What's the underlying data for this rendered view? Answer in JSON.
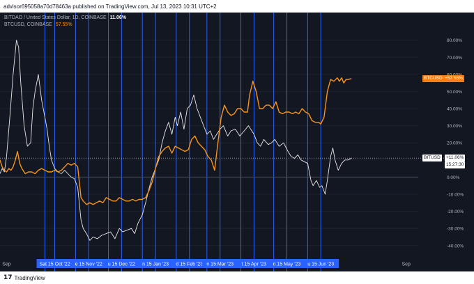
{
  "header": {
    "publish_info": "advisor695058a70d78463a published on TradingView.com, Jul 13, 2023 10:31 UTC+2"
  },
  "legend": {
    "series1_label": "BITDAO / United States Dollar, 1D, COINBASE",
    "series1_value": "11.06%",
    "series2_label": "BTCUSD, COINBASE",
    "series2_value": "57.55%"
  },
  "price_tags": {
    "btc_label": "BTCUSD",
    "btc_value": "+57.55%",
    "bit_label": "BITUSD",
    "bit_value": "+11.06%",
    "bit_countdown": "15:27:30"
  },
  "footer": {
    "logo": "17",
    "brand": "TradingView"
  },
  "colors": {
    "background": "#131722",
    "btc_line": "#f7931a",
    "bit_line": "#e8e8e8",
    "vertical_lines": "#2962ff",
    "zero_line": "#4a4f5c"
  },
  "chart_data": {
    "type": "line",
    "ylabel": "",
    "xlabel": "",
    "ylim": [
      -47,
      88
    ],
    "y_ticks": [
      "80.00%",
      "70.00%",
      "60.00%",
      "50.00%",
      "40.00%",
      "30.00%",
      "20.00%",
      "10.00%",
      "0.00%",
      "-10.00%",
      "-20.00%",
      "-30.00%",
      "-40.00%"
    ],
    "y_tick_values": [
      80,
      70,
      60,
      50,
      40,
      30,
      20,
      10,
      0,
      -10,
      -20,
      -30,
      -40
    ],
    "x_range": [
      "2022-08-26",
      "2023-09-12"
    ],
    "x_tick_labels": [
      {
        "label": "Sep",
        "date": "2022-09-01",
        "highlight": false
      },
      {
        "label": "Sat 15 Oct '22",
        "date": "2022-10-15",
        "highlight": true
      },
      {
        "label": "e 15 Nov '22",
        "date": "2022-11-15",
        "highlight": true
      },
      {
        "label": "u 15 Dec '22",
        "date": "2022-12-15",
        "highlight": true
      },
      {
        "label": "n 15 Jan '23",
        "date": "2023-01-15",
        "highlight": true
      },
      {
        "label": "d 15 Feb '23",
        "date": "2023-02-15",
        "highlight": true
      },
      {
        "label": "n 15 Mar '23",
        "date": "2023-03-15",
        "highlight": true
      },
      {
        "label": "t 15 Apr '23",
        "date": "2023-04-15",
        "highlight": true
      },
      {
        "label": "n 15 May '23",
        "date": "2023-05-15",
        "highlight": true
      },
      {
        "label": "u 15 Jun '23",
        "date": "2023-06-15",
        "highlight": true
      },
      {
        "label": "Sep",
        "date": "2023-09-01",
        "highlight": false
      }
    ],
    "vertical_markers": [
      "2022-10-06",
      "2022-10-15",
      "2022-11-03",
      "2022-11-15",
      "2022-12-03",
      "2022-12-15",
      "2023-01-03",
      "2023-01-15",
      "2023-02-03",
      "2023-02-15",
      "2023-03-03",
      "2023-03-15",
      "2023-04-03",
      "2023-04-15",
      "2023-05-03",
      "2023-05-15",
      "2023-06-03",
      "2023-06-15"
    ],
    "series": [
      {
        "name": "BITDAO / United States Dollar, 1D, COINBASE",
        "color": "#e8e8e8",
        "points": [
          [
            "2022-08-26",
            2
          ],
          [
            "2022-08-28",
            5
          ],
          [
            "2022-08-30",
            3
          ],
          [
            "2022-09-01",
            12
          ],
          [
            "2022-09-04",
            35
          ],
          [
            "2022-09-07",
            60
          ],
          [
            "2022-09-10",
            80
          ],
          [
            "2022-09-12",
            76
          ],
          [
            "2022-09-14",
            55
          ],
          [
            "2022-09-17",
            30
          ],
          [
            "2022-09-20",
            18
          ],
          [
            "2022-09-23",
            20
          ],
          [
            "2022-09-25",
            40
          ],
          [
            "2022-09-27",
            50
          ],
          [
            "2022-09-30",
            60
          ],
          [
            "2022-10-03",
            45
          ],
          [
            "2022-10-06",
            35
          ],
          [
            "2022-10-08",
            28
          ],
          [
            "2022-10-10",
            18
          ],
          [
            "2022-10-12",
            10
          ],
          [
            "2022-10-15",
            5
          ],
          [
            "2022-10-18",
            3
          ],
          [
            "2022-10-21",
            2
          ],
          [
            "2022-10-24",
            4
          ],
          [
            "2022-10-27",
            2
          ],
          [
            "2022-10-30",
            0
          ],
          [
            "2022-11-02",
            -1
          ],
          [
            "2022-11-05",
            -6
          ],
          [
            "2022-11-08",
            -25
          ],
          [
            "2022-11-10",
            -30
          ],
          [
            "2022-11-13",
            -33
          ],
          [
            "2022-11-16",
            -37
          ],
          [
            "2022-11-19",
            -35
          ],
          [
            "2022-11-23",
            -36
          ],
          [
            "2022-11-27",
            -34
          ],
          [
            "2022-12-01",
            -33
          ],
          [
            "2022-12-05",
            -32
          ],
          [
            "2022-12-09",
            -36
          ],
          [
            "2022-12-13",
            -30
          ],
          [
            "2022-12-16",
            -32
          ],
          [
            "2022-12-20",
            -31
          ],
          [
            "2022-12-24",
            -30
          ],
          [
            "2022-12-27",
            -33
          ],
          [
            "2022-12-30",
            -27
          ],
          [
            "2023-01-03",
            -22
          ],
          [
            "2023-01-06",
            -15
          ],
          [
            "2023-01-09",
            -7
          ],
          [
            "2023-01-12",
            0
          ],
          [
            "2023-01-15",
            5
          ],
          [
            "2023-01-18",
            10
          ],
          [
            "2023-01-21",
            20
          ],
          [
            "2023-01-24",
            27
          ],
          [
            "2023-01-27",
            32
          ],
          [
            "2023-01-30",
            25
          ],
          [
            "2023-02-02",
            35
          ],
          [
            "2023-02-04",
            30
          ],
          [
            "2023-02-07",
            38
          ],
          [
            "2023-02-10",
            28
          ],
          [
            "2023-02-13",
            40
          ],
          [
            "2023-02-16",
            42
          ],
          [
            "2023-02-19",
            48
          ],
          [
            "2023-02-22",
            40
          ],
          [
            "2023-02-25",
            35
          ],
          [
            "2023-02-28",
            30
          ],
          [
            "2023-03-03",
            25
          ],
          [
            "2023-03-06",
            27
          ],
          [
            "2023-03-09",
            22
          ],
          [
            "2023-03-12",
            25
          ],
          [
            "2023-03-15",
            28
          ],
          [
            "2023-03-18",
            30
          ],
          [
            "2023-03-22",
            24
          ],
          [
            "2023-03-25",
            27
          ],
          [
            "2023-03-29",
            28
          ],
          [
            "2023-04-02",
            24
          ],
          [
            "2023-04-06",
            27
          ],
          [
            "2023-04-10",
            30
          ],
          [
            "2023-04-12",
            28
          ],
          [
            "2023-04-15",
            25
          ],
          [
            "2023-04-18",
            20
          ],
          [
            "2023-04-21",
            18
          ],
          [
            "2023-04-24",
            22
          ],
          [
            "2023-04-28",
            19
          ],
          [
            "2023-05-01",
            20
          ],
          [
            "2023-05-04",
            22
          ],
          [
            "2023-05-08",
            18
          ],
          [
            "2023-05-12",
            20
          ],
          [
            "2023-05-16",
            15
          ],
          [
            "2023-05-19",
            12
          ],
          [
            "2023-05-22",
            11
          ],
          [
            "2023-05-25",
            13
          ],
          [
            "2023-05-28",
            10
          ],
          [
            "2023-05-31",
            9
          ],
          [
            "2023-06-03",
            8
          ],
          [
            "2023-06-06",
            -2
          ],
          [
            "2023-06-08",
            -5
          ],
          [
            "2023-06-11",
            -2
          ],
          [
            "2023-06-14",
            -6
          ],
          [
            "2023-06-16",
            -5
          ],
          [
            "2023-06-19",
            -10
          ],
          [
            "2023-06-21",
            -2
          ],
          [
            "2023-06-24",
            12
          ],
          [
            "2023-06-26",
            17
          ],
          [
            "2023-06-28",
            10
          ],
          [
            "2023-07-01",
            4
          ],
          [
            "2023-07-04",
            8
          ],
          [
            "2023-07-07",
            10
          ],
          [
            "2023-07-10",
            10
          ],
          [
            "2023-07-13",
            11.06
          ]
        ]
      },
      {
        "name": "BTCUSD, COINBASE",
        "color": "#f7931a",
        "points": [
          [
            "2022-08-26",
            10
          ],
          [
            "2022-08-28",
            6
          ],
          [
            "2022-08-30",
            4
          ],
          [
            "2022-09-01",
            3
          ],
          [
            "2022-09-03",
            5
          ],
          [
            "2022-09-05",
            4
          ],
          [
            "2022-09-07",
            6
          ],
          [
            "2022-09-09",
            10
          ],
          [
            "2022-09-11",
            15
          ],
          [
            "2022-09-13",
            8
          ],
          [
            "2022-09-15",
            5
          ],
          [
            "2022-09-18",
            2
          ],
          [
            "2022-09-21",
            3
          ],
          [
            "2022-09-24",
            3
          ],
          [
            "2022-09-27",
            2
          ],
          [
            "2022-09-30",
            4
          ],
          [
            "2022-10-03",
            5
          ],
          [
            "2022-10-06",
            4
          ],
          [
            "2022-10-09",
            3
          ],
          [
            "2022-10-12",
            3
          ],
          [
            "2022-10-15",
            4
          ],
          [
            "2022-10-18",
            3
          ],
          [
            "2022-10-21",
            4
          ],
          [
            "2022-10-24",
            6
          ],
          [
            "2022-10-27",
            8
          ],
          [
            "2022-10-30",
            7
          ],
          [
            "2022-11-02",
            8
          ],
          [
            "2022-11-05",
            6
          ],
          [
            "2022-11-08",
            -12
          ],
          [
            "2022-11-10",
            -14
          ],
          [
            "2022-11-13",
            -16
          ],
          [
            "2022-11-16",
            -15
          ],
          [
            "2022-11-19",
            -16
          ],
          [
            "2022-11-22",
            -15
          ],
          [
            "2022-11-25",
            -14
          ],
          [
            "2022-11-28",
            -15
          ],
          [
            "2022-12-01",
            -12
          ],
          [
            "2022-12-04",
            -13
          ],
          [
            "2022-12-07",
            -14
          ],
          [
            "2022-12-10",
            -14
          ],
          [
            "2022-12-13",
            -12
          ],
          [
            "2022-12-16",
            -13
          ],
          [
            "2022-12-19",
            -14
          ],
          [
            "2022-12-22",
            -14
          ],
          [
            "2022-12-25",
            -13
          ],
          [
            "2022-12-28",
            -14
          ],
          [
            "2022-12-31",
            -13
          ],
          [
            "2023-01-03",
            -13
          ],
          [
            "2023-01-06",
            -12
          ],
          [
            "2023-01-09",
            -8
          ],
          [
            "2023-01-12",
            -3
          ],
          [
            "2023-01-15",
            5
          ],
          [
            "2023-01-18",
            12
          ],
          [
            "2023-01-21",
            15
          ],
          [
            "2023-01-24",
            17
          ],
          [
            "2023-01-27",
            18
          ],
          [
            "2023-01-30",
            14
          ],
          [
            "2023-02-02",
            18
          ],
          [
            "2023-02-05",
            17
          ],
          [
            "2023-02-08",
            16
          ],
          [
            "2023-02-11",
            15
          ],
          [
            "2023-02-14",
            16
          ],
          [
            "2023-02-17",
            22
          ],
          [
            "2023-02-20",
            24
          ],
          [
            "2023-02-23",
            20
          ],
          [
            "2023-02-26",
            18
          ],
          [
            "2023-03-01",
            16
          ],
          [
            "2023-03-04",
            12
          ],
          [
            "2023-03-07",
            10
          ],
          [
            "2023-03-10",
            4
          ],
          [
            "2023-03-13",
            20
          ],
          [
            "2023-03-16",
            35
          ],
          [
            "2023-03-19",
            42
          ],
          [
            "2023-03-22",
            38
          ],
          [
            "2023-03-25",
            36
          ],
          [
            "2023-03-28",
            37
          ],
          [
            "2023-03-31",
            40
          ],
          [
            "2023-04-03",
            40
          ],
          [
            "2023-04-06",
            38
          ],
          [
            "2023-04-09",
            38
          ],
          [
            "2023-04-11",
            48
          ],
          [
            "2023-04-14",
            56
          ],
          [
            "2023-04-17",
            50
          ],
          [
            "2023-04-20",
            40
          ],
          [
            "2023-04-23",
            40
          ],
          [
            "2023-04-26",
            42
          ],
          [
            "2023-04-29",
            42
          ],
          [
            "2023-05-02",
            40
          ],
          [
            "2023-05-05",
            44
          ],
          [
            "2023-05-08",
            38
          ],
          [
            "2023-05-11",
            37
          ],
          [
            "2023-05-14",
            38
          ],
          [
            "2023-05-17",
            38
          ],
          [
            "2023-05-20",
            37
          ],
          [
            "2023-05-23",
            38
          ],
          [
            "2023-05-26",
            37
          ],
          [
            "2023-05-29",
            40
          ],
          [
            "2023-06-01",
            38
          ],
          [
            "2023-06-04",
            37
          ],
          [
            "2023-06-07",
            33
          ],
          [
            "2023-06-10",
            32
          ],
          [
            "2023-06-13",
            32
          ],
          [
            "2023-06-15",
            31
          ],
          [
            "2023-06-18",
            35
          ],
          [
            "2023-06-21",
            50
          ],
          [
            "2023-06-24",
            57
          ],
          [
            "2023-06-27",
            56
          ],
          [
            "2023-06-30",
            58
          ],
          [
            "2023-07-02",
            56
          ],
          [
            "2023-07-04",
            58
          ],
          [
            "2023-07-06",
            55
          ],
          [
            "2023-07-08",
            57
          ],
          [
            "2023-07-10",
            57
          ],
          [
            "2023-07-13",
            57.55
          ]
        ]
      }
    ]
  }
}
